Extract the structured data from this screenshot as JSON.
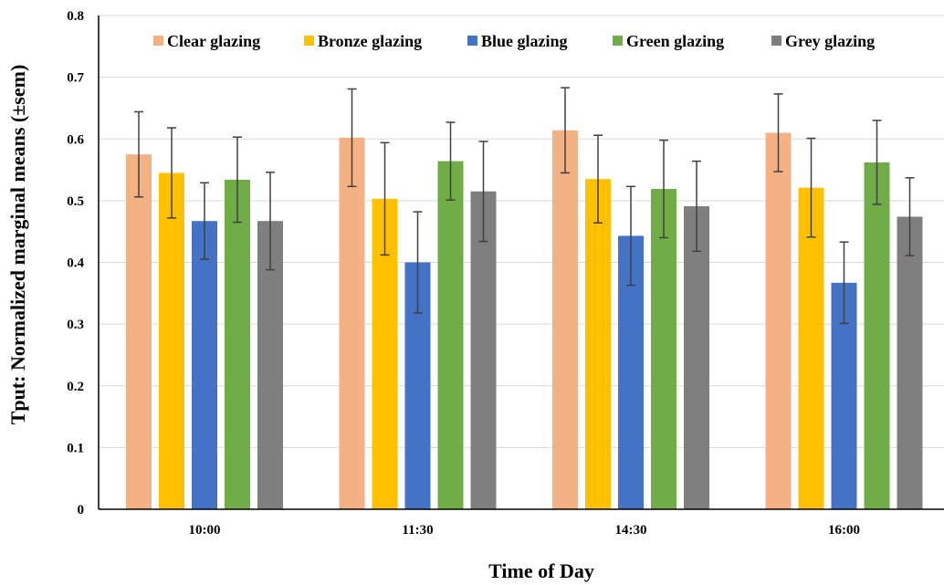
{
  "chart_data": {
    "type": "bar",
    "xlabel": "Time of Day",
    "ylabel": "Tput: Normalized marginal means (±sem)",
    "ylim": [
      0,
      0.8
    ],
    "yticks": [
      "0",
      "0.1",
      "0.2",
      "0.3",
      "0.4",
      "0.5",
      "0.6",
      "0.7",
      "0.8"
    ],
    "grid": true,
    "legend_position": "top",
    "categories": [
      "10:00",
      "11:30",
      "14:30",
      "16:00"
    ],
    "series": [
      {
        "name": "Clear glazing",
        "color": "#F4B183",
        "values": [
          0.575,
          0.602,
          0.614,
          0.61
        ],
        "err": [
          0.069,
          0.079,
          0.069,
          0.063
        ]
      },
      {
        "name": "Bronze glazing",
        "color": "#FFC000",
        "values": [
          0.545,
          0.503,
          0.535,
          0.521
        ],
        "err": [
          0.073,
          0.091,
          0.071,
          0.08
        ]
      },
      {
        "name": "Blue glazing",
        "color": "#4472C4",
        "values": [
          0.467,
          0.4,
          0.443,
          0.367
        ],
        "err": [
          0.062,
          0.082,
          0.08,
          0.066
        ]
      },
      {
        "name": "Green glazing",
        "color": "#70AD47",
        "values": [
          0.534,
          0.564,
          0.519,
          0.562
        ],
        "err": [
          0.069,
          0.063,
          0.079,
          0.068
        ]
      },
      {
        "name": "Grey glazing",
        "color": "#7F7F7F",
        "values": [
          0.467,
          0.515,
          0.491,
          0.474
        ],
        "err": [
          0.079,
          0.081,
          0.073,
          0.063
        ]
      }
    ]
  }
}
